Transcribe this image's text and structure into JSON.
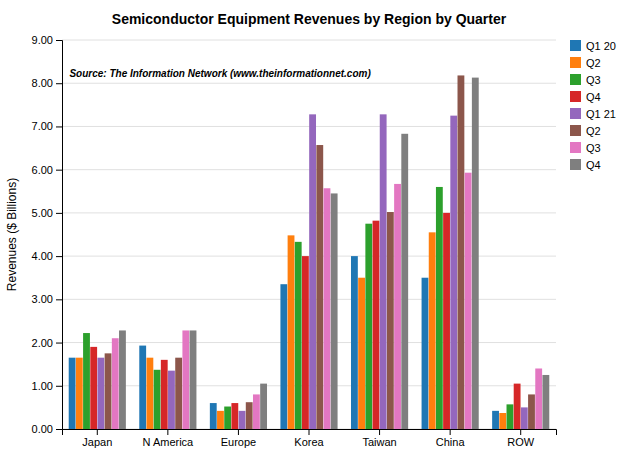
{
  "chart_data": {
    "type": "bar",
    "title": "Semiconductor Equipment Revenues by Region by Quarter",
    "ylabel": "Revenues ($ Billions)",
    "annotations": [
      "Source: The Information Network (www.theinformationnet.com)"
    ],
    "categories": [
      "Japan",
      "N America",
      "Europe",
      "Korea",
      "Taiwan",
      "China",
      "ROW"
    ],
    "series": [
      {
        "name": "Q1 20",
        "values": [
          1.65,
          1.93,
          0.6,
          3.35,
          4.0,
          3.5,
          0.42
        ]
      },
      {
        "name": "Q2",
        "values": [
          1.65,
          1.65,
          0.42,
          4.48,
          3.5,
          4.55,
          0.37
        ]
      },
      {
        "name": "Q3",
        "values": [
          2.22,
          1.37,
          0.52,
          4.33,
          4.75,
          5.6,
          0.57
        ]
      },
      {
        "name": "Q4",
        "values": [
          1.9,
          1.6,
          0.6,
          4.0,
          4.82,
          5.0,
          1.05
        ]
      },
      {
        "name": "Q1 21",
        "values": [
          1.65,
          1.35,
          0.42,
          7.28,
          7.28,
          7.25,
          0.5
        ]
      },
      {
        "name": "Q2",
        "values": [
          1.75,
          1.65,
          0.62,
          6.57,
          5.02,
          8.18,
          0.8
        ]
      },
      {
        "name": "Q3",
        "values": [
          2.1,
          2.28,
          0.8,
          5.57,
          5.67,
          5.93,
          1.4
        ]
      },
      {
        "name": "Q4",
        "values": [
          2.28,
          2.28,
          1.05,
          5.45,
          6.83,
          8.13,
          1.25
        ]
      }
    ],
    "ylim": [
      0,
      9.0
    ],
    "yticks": [
      {
        "value": 0,
        "label": "0.00"
      },
      {
        "value": 1,
        "label": "1.00"
      },
      {
        "value": 2,
        "label": "2.00"
      },
      {
        "value": 3,
        "label": "3.00"
      },
      {
        "value": 4,
        "label": "4.00"
      },
      {
        "value": 5,
        "label": "5.00"
      },
      {
        "value": 6,
        "label": "6.00"
      },
      {
        "value": 7,
        "label": "7.00"
      },
      {
        "value": 8,
        "label": "8.00"
      },
      {
        "value": 9,
        "label": "9.00"
      }
    ],
    "grid": true,
    "legend": "upper right"
  }
}
